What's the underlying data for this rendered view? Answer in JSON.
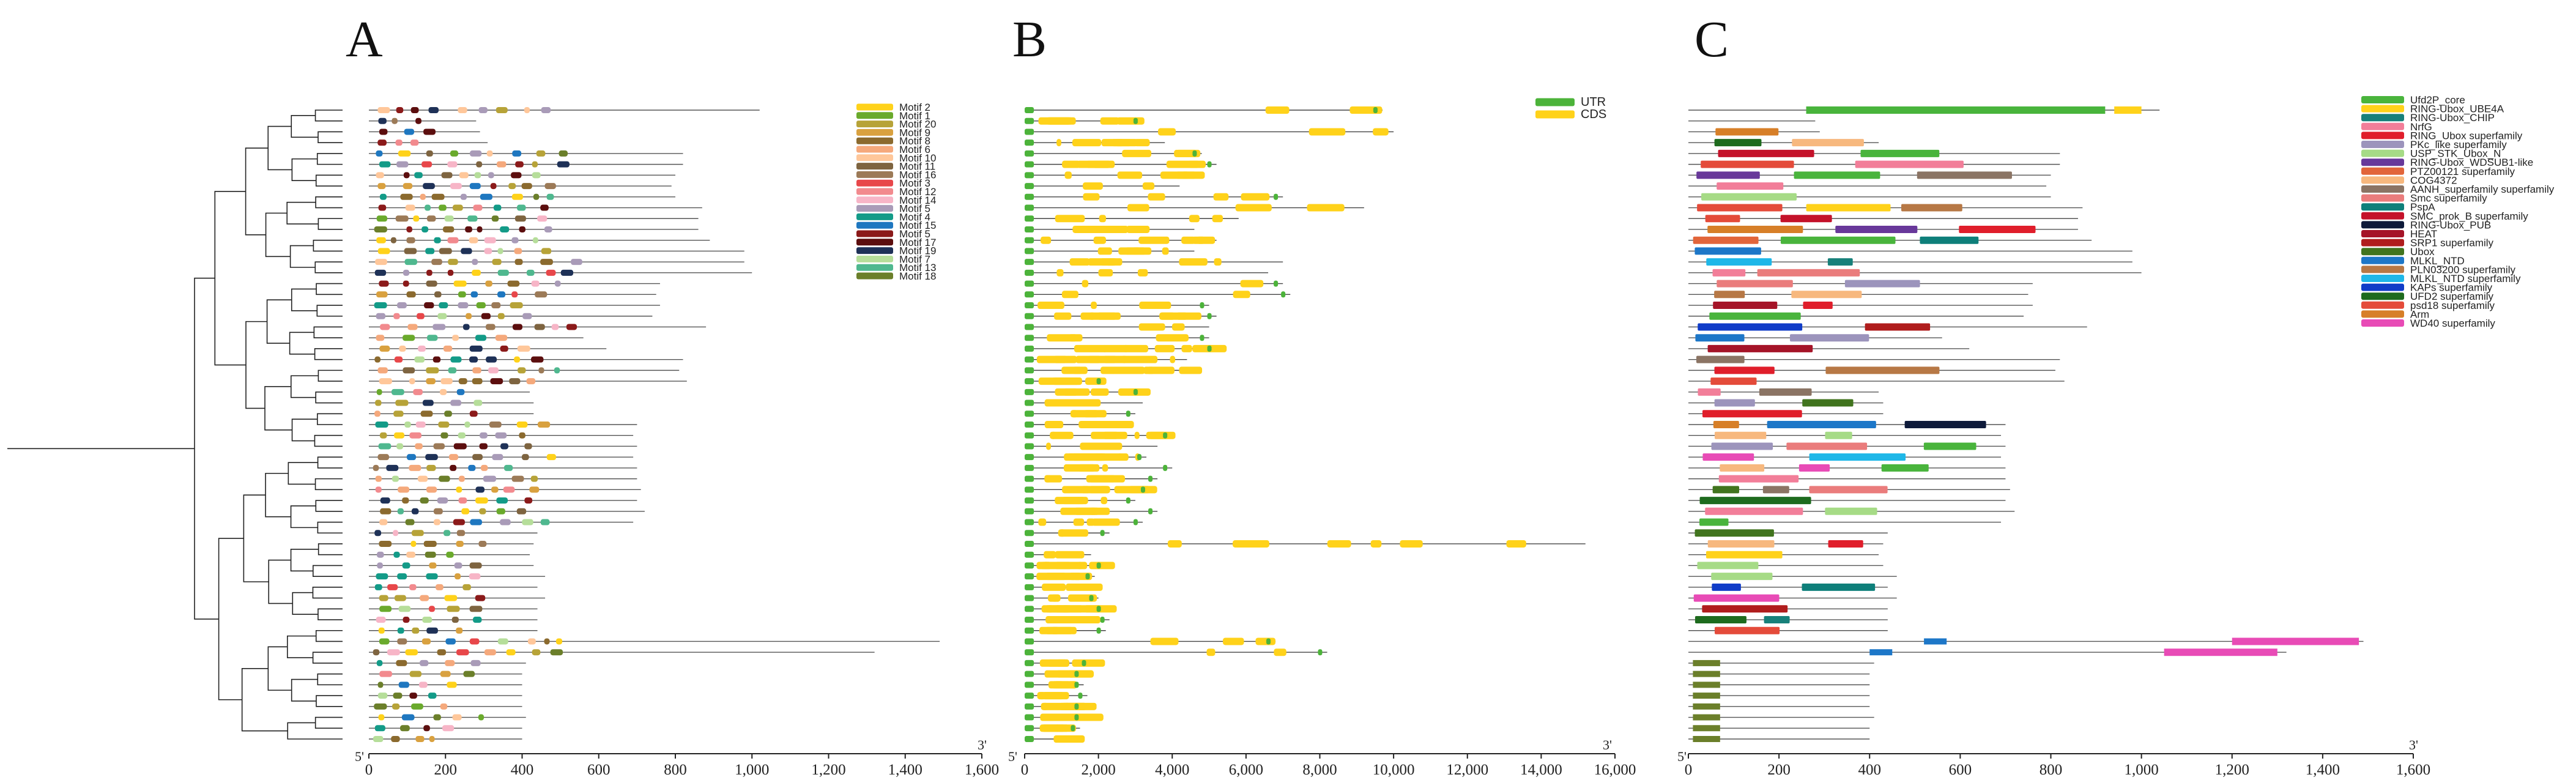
{
  "panels": [
    {
      "letter": "A",
      "axis_ticks": [
        "0",
        "200",
        "400",
        "600",
        "800",
        "1,000",
        "1,200",
        "1,400",
        "1,600"
      ],
      "strand_start": "5'",
      "strand_end": "3'",
      "legend": [
        {
          "name": "Motif 2",
          "color": "#FFD21A"
        },
        {
          "name": "Motif 1",
          "color": "#6AAA2C"
        },
        {
          "name": "Motif 20",
          "color": "#B7A338"
        },
        {
          "name": "Motif 9",
          "color": "#D9A13F"
        },
        {
          "name": "Motif 8",
          "color": "#8B6A2E"
        },
        {
          "name": "Motif 6",
          "color": "#F5A97C"
        },
        {
          "name": "Motif 10",
          "color": "#FFC79A"
        },
        {
          "name": "Motif 11",
          "color": "#7E6440"
        },
        {
          "name": "Motif 16",
          "color": "#9C7A57"
        },
        {
          "name": "Motif 3",
          "color": "#E8474A"
        },
        {
          "name": "Motif 12",
          "color": "#F28A8E"
        },
        {
          "name": "Motif 14",
          "color": "#F7B5C7"
        },
        {
          "name": "Motif 5",
          "color": "#A99BB8"
        },
        {
          "name": "Motif 4",
          "color": "#139B88"
        },
        {
          "name": "Motif 15",
          "color": "#1E77C0"
        },
        {
          "name": "Motif 5",
          "color": "#8B1A1A"
        },
        {
          "name": "Motif 17",
          "color": "#5C0E0E"
        },
        {
          "name": "Motif 19",
          "color": "#1E3157"
        },
        {
          "name": "Motif 7",
          "color": "#B6DE9A"
        },
        {
          "name": "Motif 13",
          "color": "#4FB88F"
        },
        {
          "name": "Motif 18",
          "color": "#6B7F2A"
        }
      ]
    },
    {
      "letter": "B",
      "axis_ticks": [
        "0",
        "2,000",
        "4,000",
        "6,000",
        "8,000",
        "10,000",
        "12,000",
        "14,000",
        "16,000"
      ],
      "strand_start": "5'",
      "strand_end": "3'",
      "legend": [
        {
          "name": "UTR",
          "color": "#4CB33A"
        },
        {
          "name": "CDS",
          "color": "#FFD21A"
        }
      ]
    },
    {
      "letter": "C",
      "axis_ticks": [
        "0",
        "200",
        "400",
        "600",
        "800",
        "1,000",
        "1,200",
        "1,400",
        "1,600"
      ],
      "strand_start": "5'",
      "strand_end": "3'",
      "legend": [
        {
          "name": "Ufd2P_core",
          "color": "#49B43C"
        },
        {
          "name": "RING-Ubox_UBE4A",
          "color": "#FFD21A"
        },
        {
          "name": "RING-Ubox_CHIP",
          "color": "#17807A"
        },
        {
          "name": "NrfG",
          "color": "#F27E99"
        },
        {
          "name": "RING_Ubox superfamily",
          "color": "#E01E2B"
        },
        {
          "name": "PKc_like superfamily",
          "color": "#9C94BC"
        },
        {
          "name": "USP_STK_Ubox_N",
          "color": "#A6DB86"
        },
        {
          "name": "RING-Ubox_WDSUB1-like",
          "color": "#68389A"
        },
        {
          "name": "PTZ00121 superfamily",
          "color": "#E2653A"
        },
        {
          "name": "COG4372",
          "color": "#F7B87E"
        },
        {
          "name": "AANH_superfamily superfamily",
          "color": "#8B7464"
        },
        {
          "name": "Smc superfamily",
          "color": "#EA7C7C"
        },
        {
          "name": "PspA",
          "color": "#0E7F7A"
        },
        {
          "name": "SMC_prok_B superfamily",
          "color": "#C4122A"
        },
        {
          "name": "RING-Ubox_PUB",
          "color": "#0E1A3A"
        },
        {
          "name": "HEAT",
          "color": "#A51428"
        },
        {
          "name": "SRP1 superfamily",
          "color": "#B01D1D"
        },
        {
          "name": "Ubox",
          "color": "#41741E"
        },
        {
          "name": "MLKL_NTD",
          "color": "#1D77C8"
        },
        {
          "name": "PLN03200 superfamily",
          "color": "#B77845"
        },
        {
          "name": "MLKL_NTD superfamily",
          "color": "#1FB7E8"
        },
        {
          "name": "KAPs superfamily",
          "color": "#103CC8"
        },
        {
          "name": "UFD2 superfamily",
          "color": "#1E6B1E"
        },
        {
          "name": "psd18 superfamily",
          "color": "#E44B3A"
        },
        {
          "name": "Arm",
          "color": "#D77F28"
        },
        {
          "name": "WD40 superfamily",
          "color": "#E84BB6"
        }
      ]
    }
  ]
}
